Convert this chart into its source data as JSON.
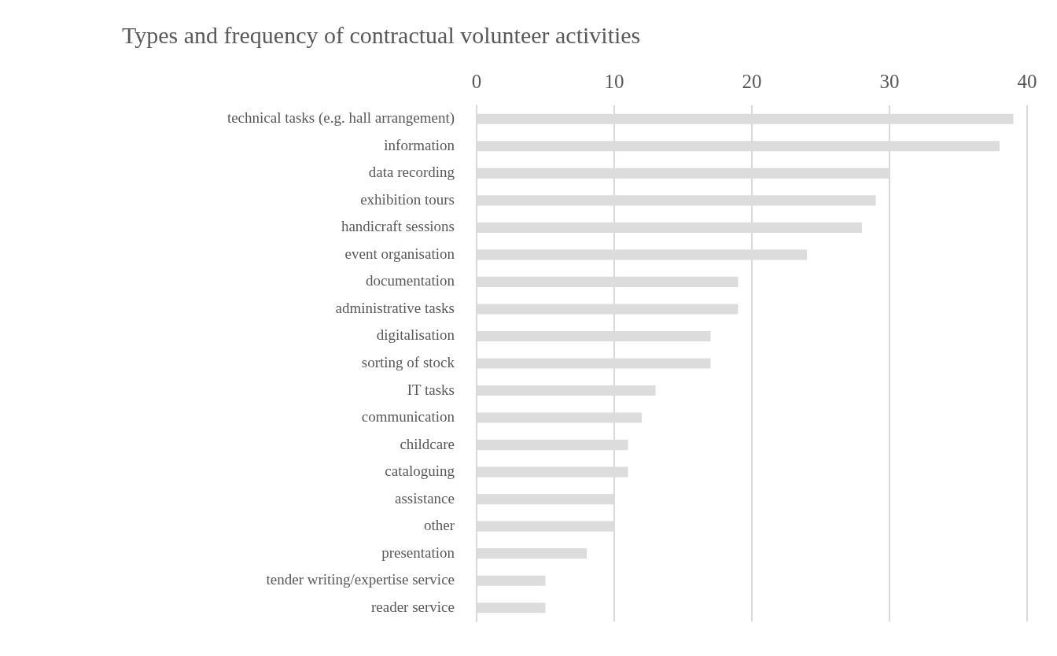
{
  "chart_data": {
    "type": "bar",
    "orientation": "horizontal",
    "title": "Types and frequency of contractual volunteer activities",
    "categories": [
      "technical tasks (e.g. hall arrangement)",
      "information",
      "data recording",
      "exhibition tours",
      "handicraft sessions",
      "event organisation",
      "documentation",
      "administrative tasks",
      "digitalisation",
      "sorting of stock",
      "IT tasks",
      "communication",
      "childcare",
      "cataloguing",
      "assistance",
      "other",
      "presentation",
      "tender writing/expertise service",
      "reader service"
    ],
    "values": [
      39,
      38,
      30,
      29,
      28,
      24,
      19,
      19,
      17,
      17,
      13,
      12,
      11,
      11,
      10,
      10,
      8,
      5,
      5
    ],
    "color": "#dcdcdc",
    "xlim": [
      0,
      40
    ],
    "xticks": [
      0,
      10,
      20,
      30,
      40
    ],
    "grid": "x",
    "legend": false
  }
}
